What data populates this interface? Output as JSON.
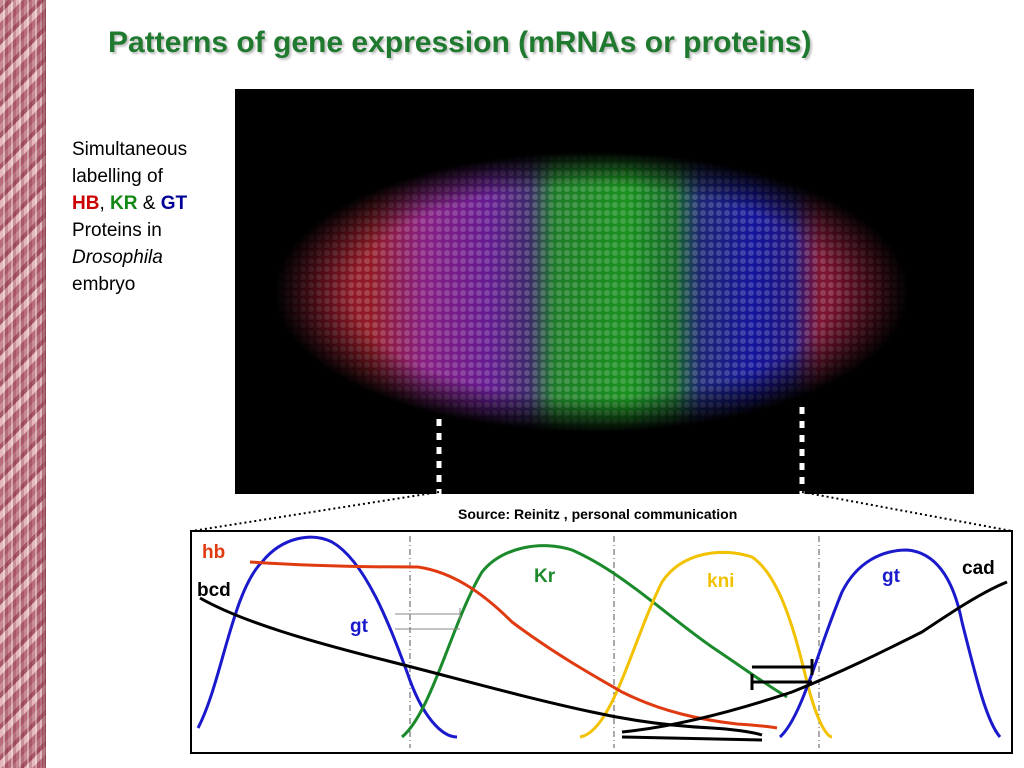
{
  "title": "Patterns of gene expression (mRNAs or proteins)",
  "side_text": {
    "line1": "Simultaneous",
    "line2": "labelling of",
    "hb": "HB",
    "comma": ",",
    "kr": "KR",
    "amp": "&",
    "gt": "GT",
    "line4": "Proteins in",
    "drosophila": "Drosophila",
    "line6": "embryo"
  },
  "source": "Source: Reinitz , personal communication",
  "labels": {
    "hb": "hb",
    "bcd": "bcd",
    "gt_left": "gt",
    "kr": "Kr",
    "kni": "kni",
    "gt_right": "gt",
    "cad": "cad"
  },
  "colors": {
    "title": "#1f7a2f",
    "hb": "#e03a10",
    "bcd": "#000000",
    "gt": "#1a1acc",
    "kr": "#1a8a2a",
    "kni": "#f2c200"
  }
}
